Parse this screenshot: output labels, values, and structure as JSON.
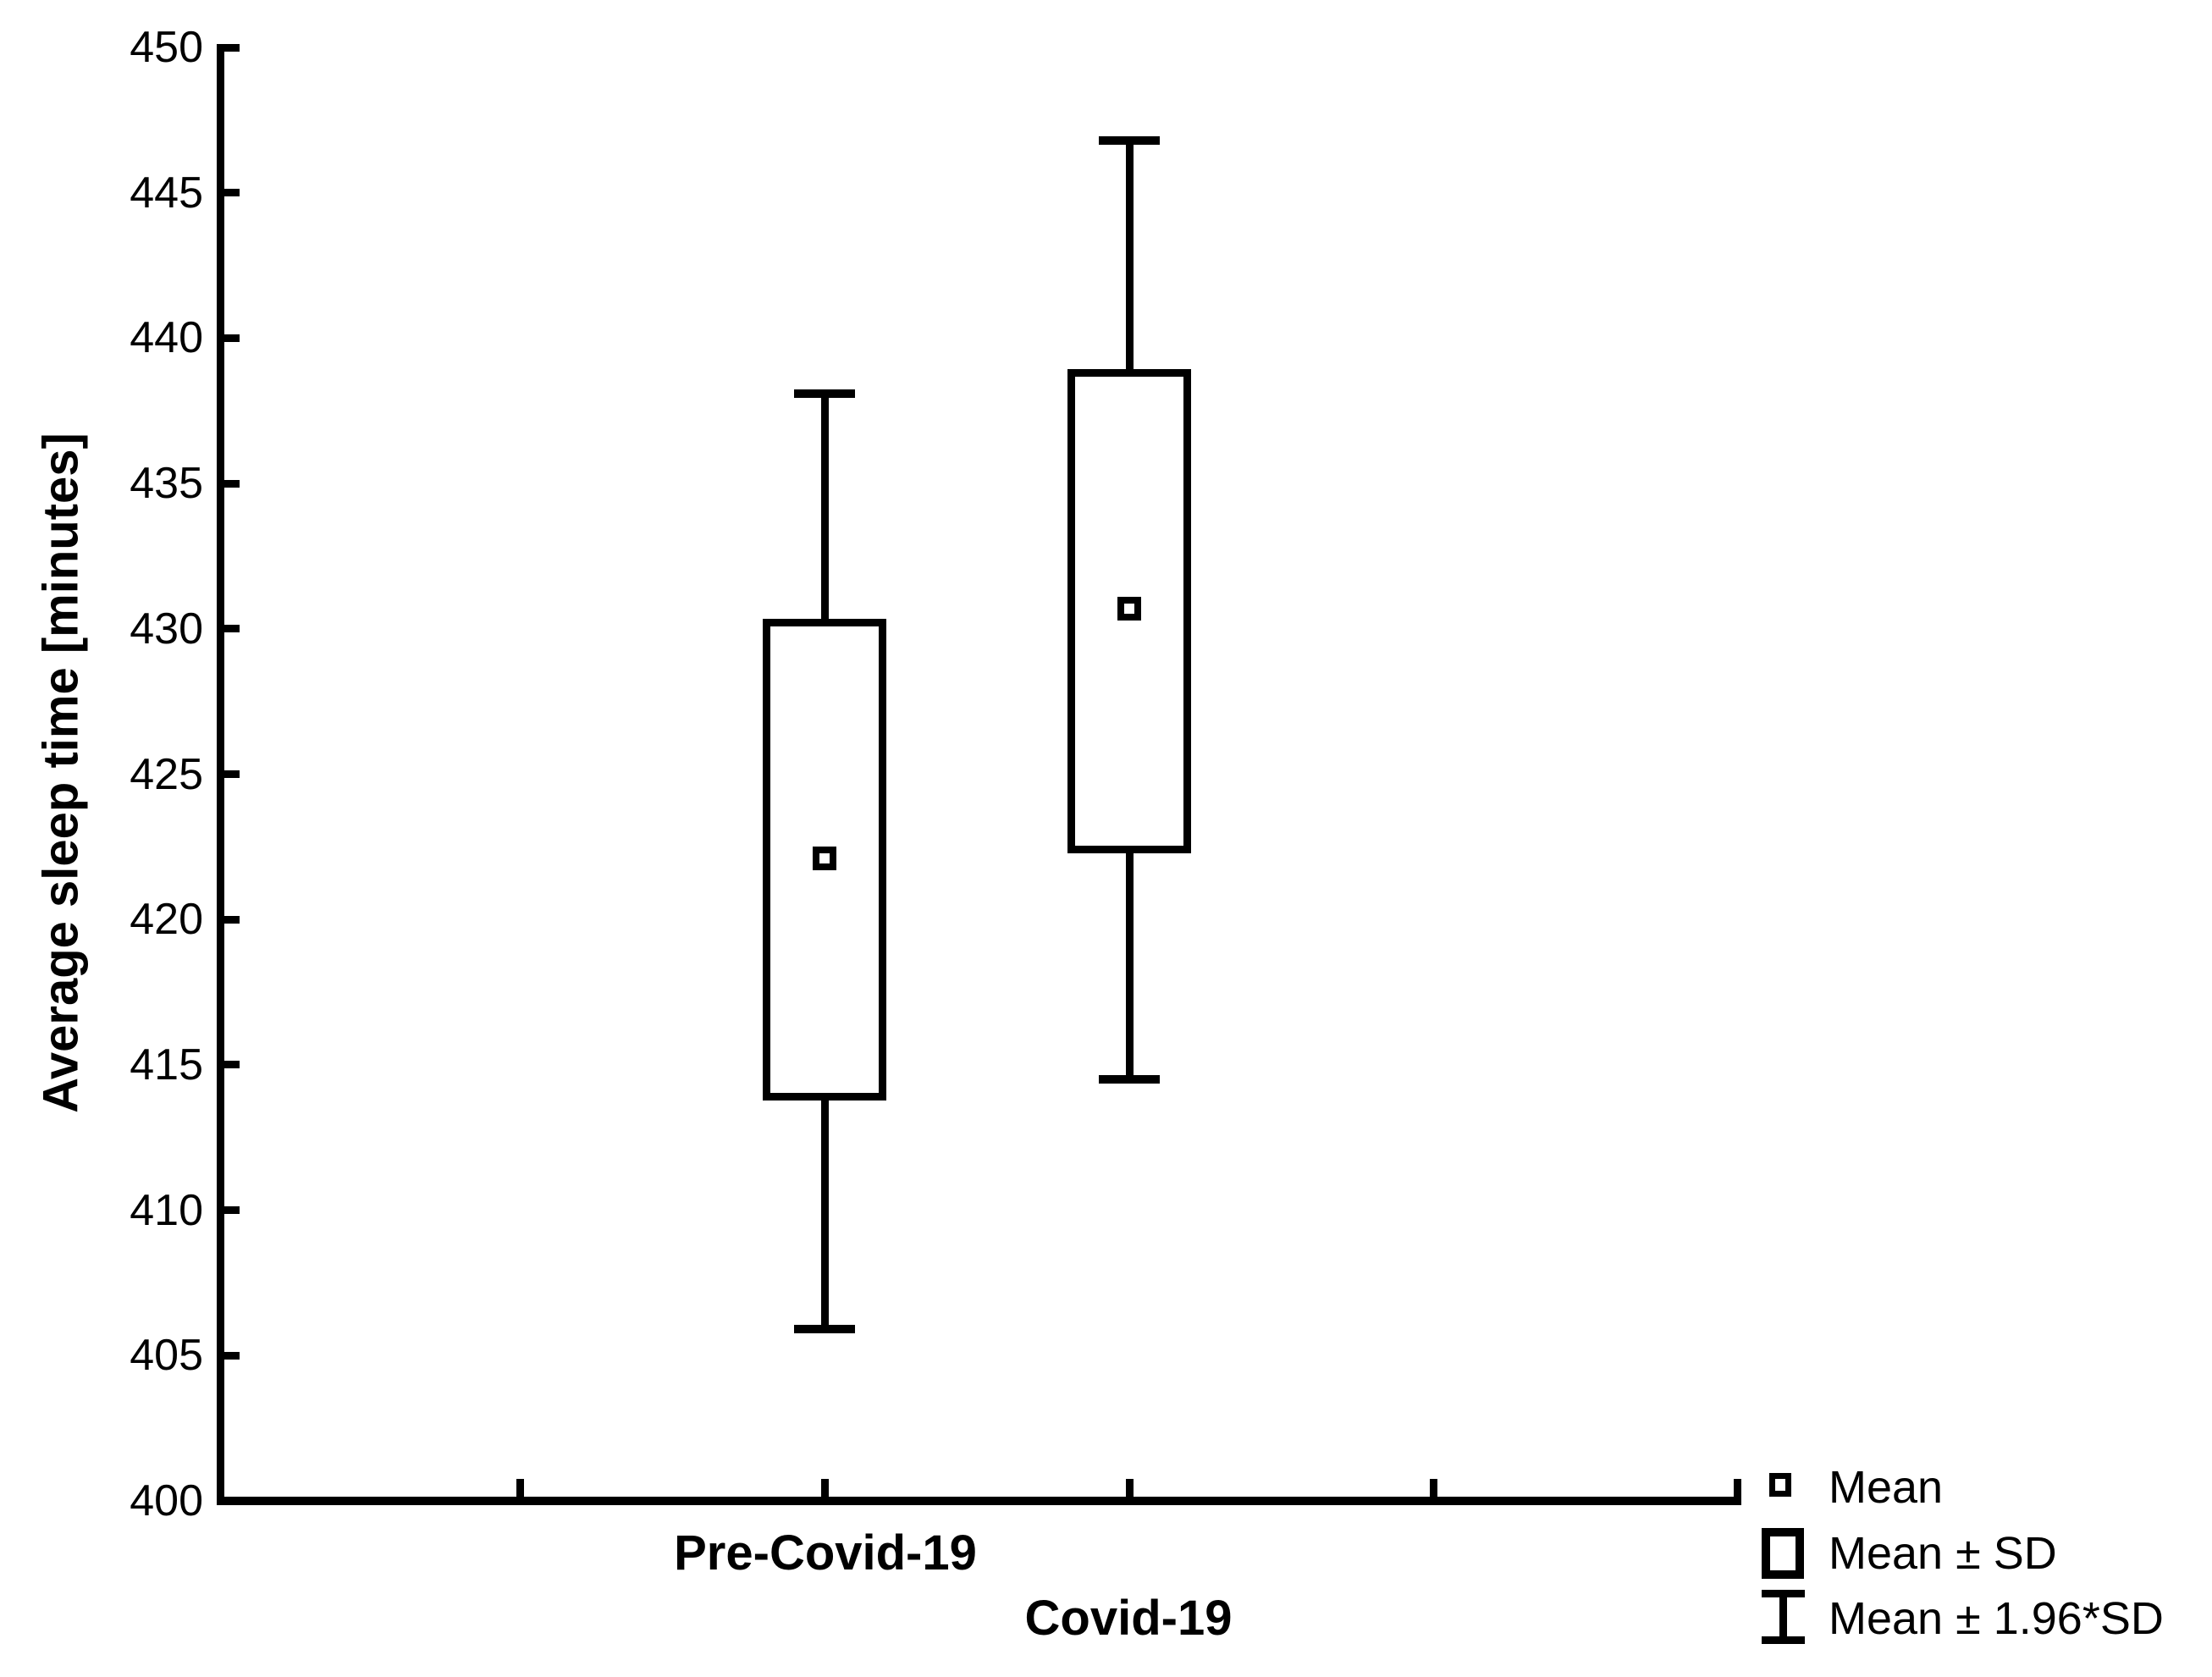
{
  "figure": {
    "background": "#FFFFFF",
    "ink": "#000000"
  },
  "y_axis": {
    "title": "Average sleep time [minutes]",
    "min": 400,
    "max": 450,
    "step": 5,
    "ticks": [
      400,
      405,
      410,
      415,
      420,
      425,
      430,
      435,
      440,
      445,
      450
    ]
  },
  "x_axis": {
    "categories": [
      "Pre-Covid-19",
      "Covid-19"
    ]
  },
  "legend": {
    "items": [
      {
        "symbol": "mean-square-icon",
        "label": "Mean"
      },
      {
        "symbol": "sd-box-icon",
        "label": "Mean ± SD"
      },
      {
        "symbol": "error-bar-icon",
        "label": "Mean ± 1.96*SD"
      }
    ]
  },
  "chart_data": {
    "type": "box",
    "variant": "mean-sd-1.96sd",
    "title": "",
    "xlabel": "",
    "ylabel": "Average sleep time [minutes]",
    "ylim": [
      400,
      450
    ],
    "y_tick_step": 5,
    "grid": false,
    "legend_position": "bottom-right",
    "categories": [
      "Pre-Covid-19",
      "Covid-19"
    ],
    "series": [
      {
        "name": "Pre-Covid-19",
        "mean": 422.1,
        "sd": 8.2,
        "box_low": 413.9,
        "box_high": 430.2,
        "whisker_low": 405.9,
        "whisker_high": 438.1
      },
      {
        "name": "Covid-19",
        "mean": 430.7,
        "sd": 8.2,
        "box_low": 422.4,
        "box_high": 438.8,
        "whisker_low": 414.5,
        "whisker_high": 446.8
      }
    ]
  }
}
